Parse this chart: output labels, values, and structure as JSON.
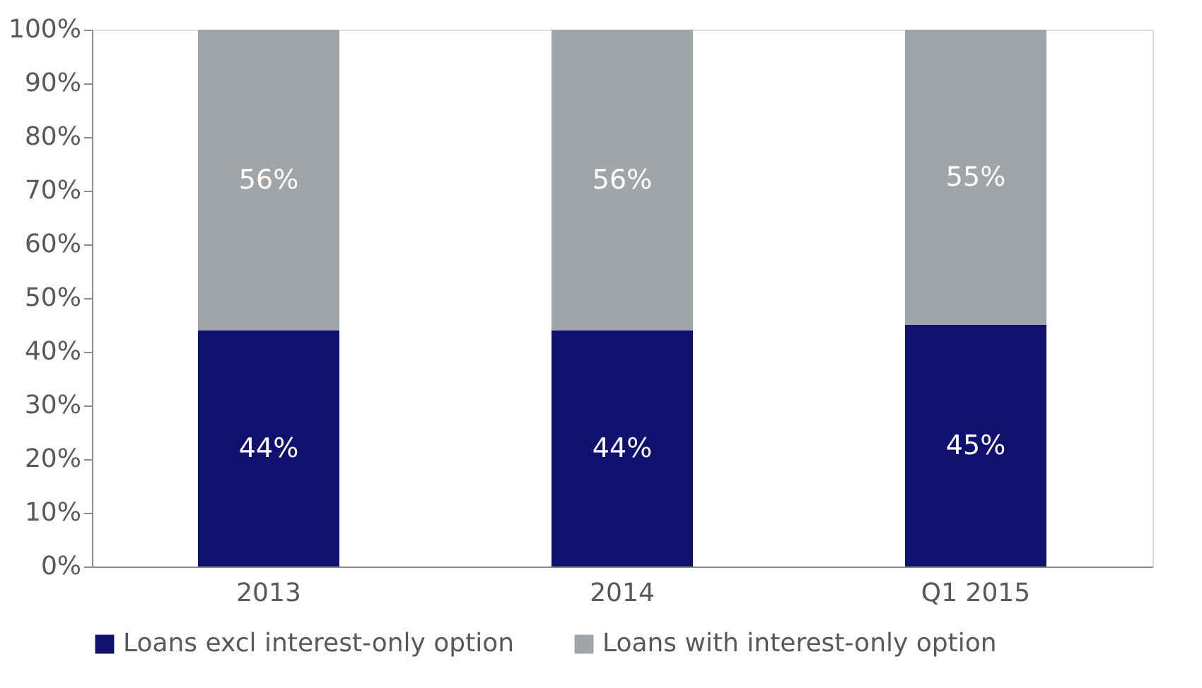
{
  "chart_data": {
    "type": "bar",
    "stacked": true,
    "categories": [
      "2013",
      "2014",
      "Q1 2015"
    ],
    "series": [
      {
        "name": "Loans excl interest-only option",
        "color": "#10106e",
        "values": [
          44,
          44,
          45
        ]
      },
      {
        "name": "Loans with interest-only option",
        "color": "#a2a5a8",
        "values": [
          56,
          56,
          55
        ]
      }
    ],
    "ylim": [
      0,
      100
    ],
    "yticks": [
      {
        "value": 0,
        "label": "0%"
      },
      {
        "value": 10,
        "label": "10%"
      },
      {
        "value": 20,
        "label": "20%"
      },
      {
        "value": 30,
        "label": "30%"
      },
      {
        "value": 40,
        "label": "40%"
      },
      {
        "value": 50,
        "label": "50%"
      },
      {
        "value": 60,
        "label": "60%"
      },
      {
        "value": 70,
        "label": "70%"
      },
      {
        "value": 80,
        "label": "80%"
      },
      {
        "value": 90,
        "label": "90%"
      },
      {
        "value": 100,
        "label": "100%"
      }
    ],
    "value_labels": [
      [
        "44%",
        "44%",
        "45%"
      ],
      [
        "56%",
        "56%",
        "55%"
      ]
    ],
    "grid": false,
    "legend": "bottom"
  }
}
